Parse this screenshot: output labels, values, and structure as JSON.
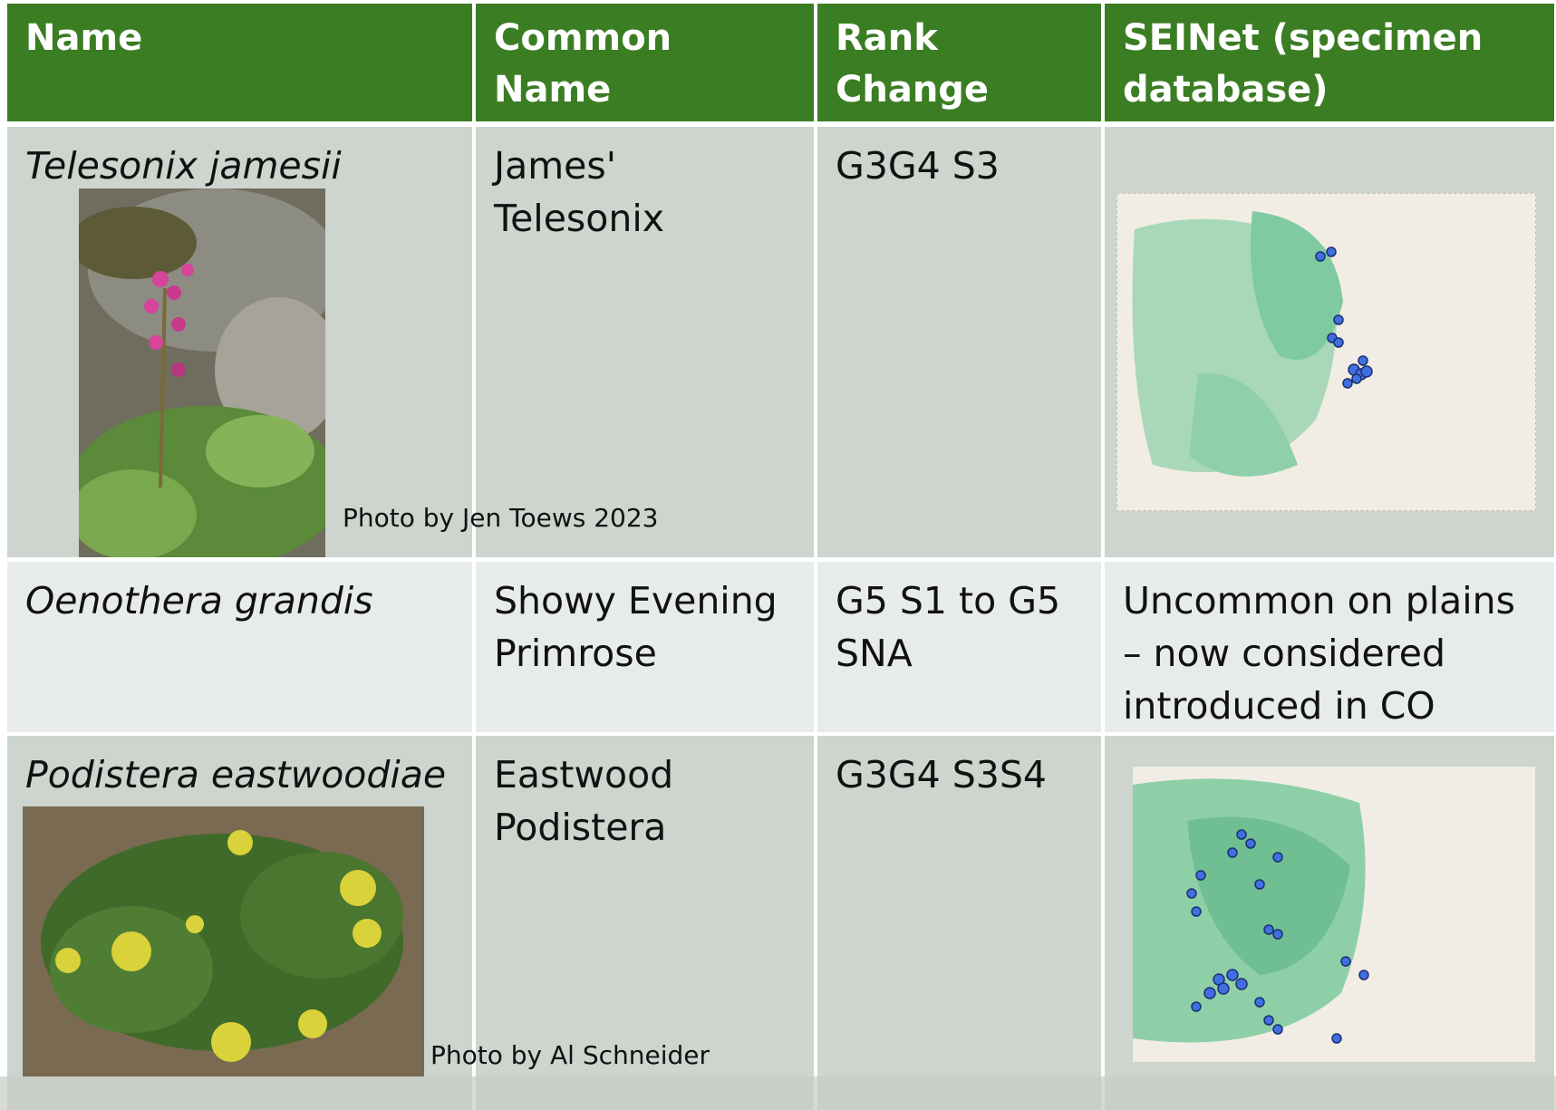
{
  "table": {
    "header": [
      "Name",
      "Common Name",
      "Rank Change",
      "SEINet (specimen database)"
    ],
    "rows": [
      {
        "name": "Telesonix jamesii",
        "common_name": "James' Telesonix",
        "rank": "G3G4 S3",
        "photo_credit": "Photo by Jen Toews 2023"
      },
      {
        "name": "Oenothera grandis",
        "common_name": "Showy Evening Primrose",
        "rank": "G5 S1 to G5 SNA",
        "seinet_note": "Uncommon on plains – now considered introduced in CO"
      },
      {
        "name": "Podistera eastwoodiae",
        "common_name": "Eastwood Podistera",
        "rank": "G3G4 S3S4",
        "photo_credit": "Photo by Al Schneider"
      }
    ]
  }
}
